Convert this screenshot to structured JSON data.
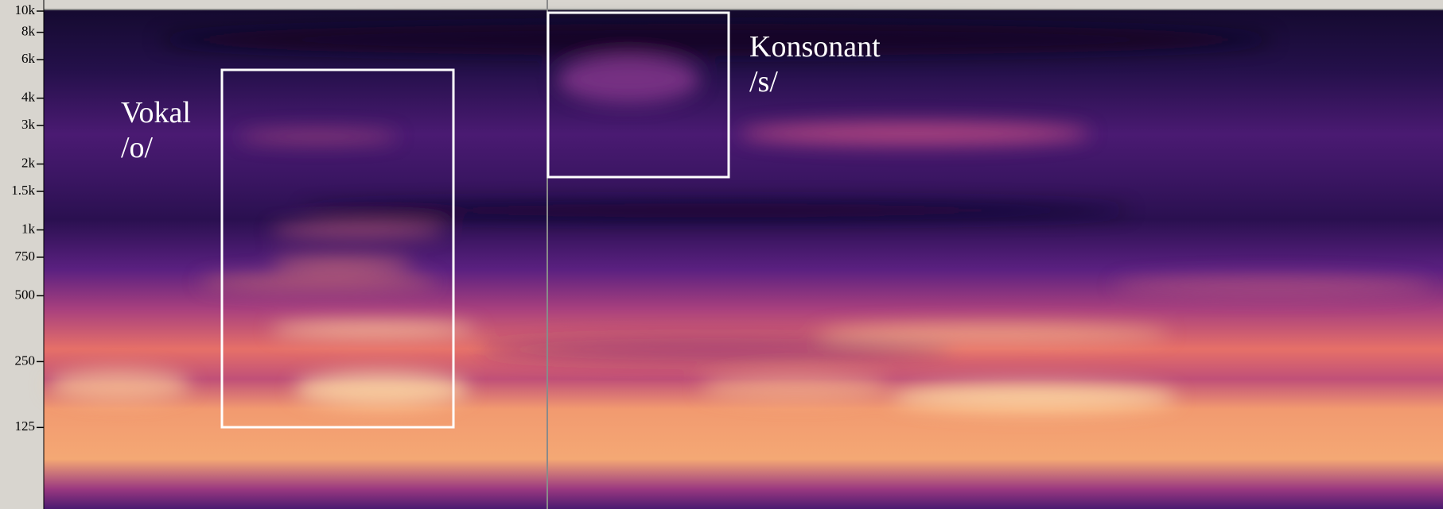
{
  "chart_data": {
    "type": "spectrogram",
    "log_scale_y": true,
    "ylim": [
      53,
      10000
    ],
    "yticks": [
      {
        "value": 10000,
        "label": "10k"
      },
      {
        "value": 8000,
        "label": "8k"
      },
      {
        "value": 6000,
        "label": "6k"
      },
      {
        "value": 4000,
        "label": "4k"
      },
      {
        "value": 3000,
        "label": "3k"
      },
      {
        "value": 2000,
        "label": "2k"
      },
      {
        "value": 1500,
        "label": "1.5k"
      },
      {
        "value": 1000,
        "label": "1k"
      },
      750,
      500,
      250,
      125
    ],
    "annotations": [
      {
        "lines": [
          "Vokal",
          "/o/"
        ]
      },
      {
        "lines": [
          "Konsonant",
          "/s/"
        ]
      }
    ]
  }
}
